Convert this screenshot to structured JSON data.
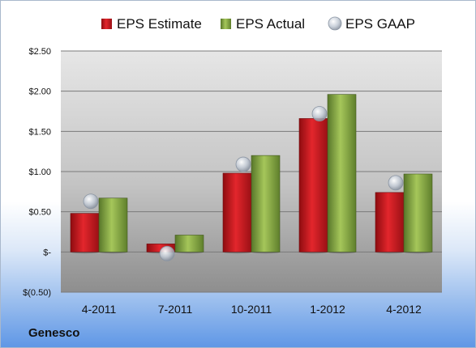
{
  "company": "Genesco",
  "colors": {
    "estimate": "#c8161d",
    "actual": "#7fa33a",
    "gaap": "#b9c3cf"
  },
  "chart_data": {
    "type": "bar",
    "title": "",
    "xlabel": "",
    "ylabel": "",
    "categories": [
      "4-2011",
      "7-2011",
      "10-2011",
      "1-2012",
      "4-2012"
    ],
    "series": [
      {
        "name": "EPS Estimate",
        "type": "bar",
        "values": [
          0.48,
          0.1,
          0.98,
          1.66,
          0.74
        ]
      },
      {
        "name": "EPS Actual",
        "type": "bar",
        "values": [
          0.67,
          0.21,
          1.2,
          1.96,
          0.97
        ]
      },
      {
        "name": "EPS GAAP",
        "type": "scatter",
        "values": [
          0.63,
          -0.02,
          1.09,
          1.72,
          0.86
        ]
      }
    ],
    "ylim": [
      -0.5,
      2.5
    ],
    "yticks": [
      {
        "value": 2.5,
        "label": "$2.50"
      },
      {
        "value": 2.0,
        "label": "$2.00"
      },
      {
        "value": 1.5,
        "label": "$1.50"
      },
      {
        "value": 1.0,
        "label": "$1.00"
      },
      {
        "value": 0.5,
        "label": "$0.50"
      },
      {
        "value": 0.0,
        "label": "$-"
      },
      {
        "value": -0.5,
        "label": "$(0.50)"
      }
    ],
    "grid": true,
    "legend": "top"
  }
}
